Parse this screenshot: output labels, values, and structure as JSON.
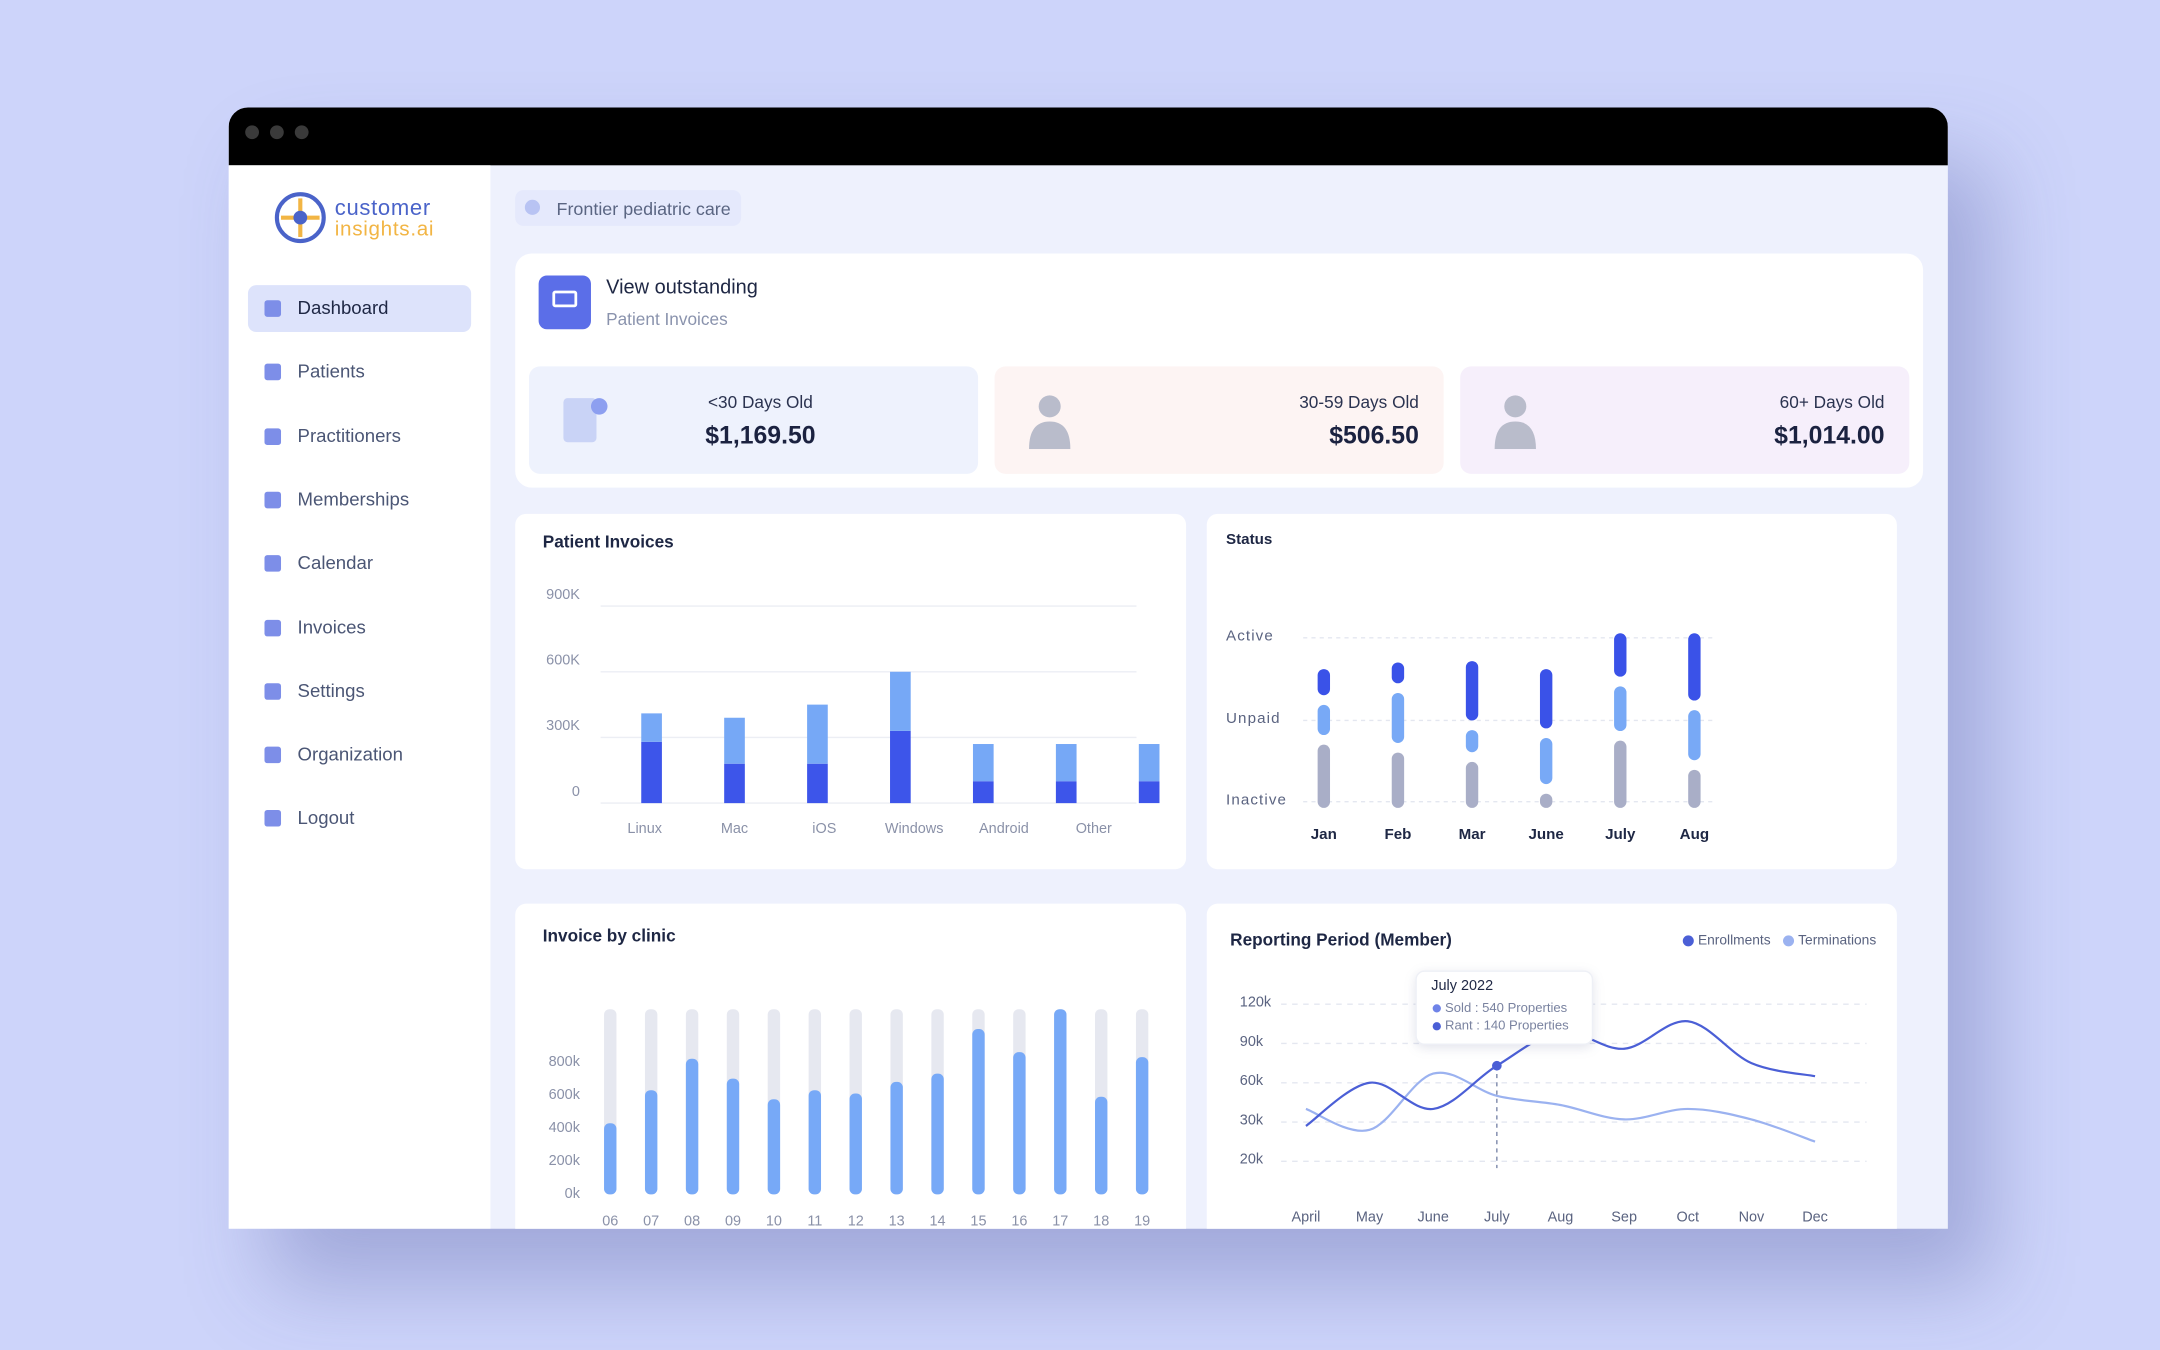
{
  "sidebar": {
    "logo": [
      "customer",
      "insights.ai"
    ],
    "nav": [
      "Dashboard",
      "Patients",
      "Practitioners",
      "Memberships",
      "Calendar",
      "Invoices",
      "Settings",
      "Organization",
      "Logout"
    ],
    "active": "Dashboard"
  },
  "location": "Frontier pediatric care",
  "outstanding": {
    "title": "View outstanding",
    "subtitle": "Patient Invoices",
    "cards": [
      {
        "label": "<30 Days Old",
        "value": "$1,169.50",
        "color": "#eef2fd"
      },
      {
        "label": "30-59 Days Old",
        "value": "$506.50",
        "color": "#fdf4f3"
      },
      {
        "label": "60+ Days Old",
        "value": "$1,014.00",
        "color": "#f6effb"
      }
    ]
  },
  "chart_data": [
    {
      "type": "bar",
      "stacked": true,
      "title": "Patient Invoices",
      "categories": [
        "Linux",
        "Mac",
        "iOS",
        "Windows",
        "Android",
        "Other",
        null
      ],
      "series": [
        {
          "color": "#3d55ea",
          "values": [
            280000,
            180000,
            180000,
            330000,
            100000,
            100000,
            100000
          ]
        },
        {
          "color": "#76a8f6",
          "values": [
            130000,
            210000,
            270000,
            270000,
            170000,
            170000,
            170000
          ]
        }
      ],
      "ylim": [
        0,
        900000
      ],
      "yticks": [
        0,
        {
          "value": 300000,
          "label": "300K"
        },
        {
          "value": 600000,
          "label": "600K"
        },
        {
          "value": 900000,
          "label": "900K"
        }
      ],
      "grid": true
    },
    {
      "type": "bar",
      "stacked": true,
      "title": "Status",
      "categories": [
        "Jan",
        "Feb",
        "Mar",
        "June",
        "July",
        "Aug"
      ],
      "y_categories": [
        "Active",
        "Unpaid",
        "Inactive"
      ],
      "series": [
        {
          "color": "#a9aec7",
          "values": [
            55,
            49,
            42,
            18,
            58,
            36
          ]
        },
        {
          "color": "#78a9f6",
          "values": [
            30,
            45,
            24,
            42,
            41,
            45
          ]
        },
        {
          "color": "#3a52e8",
          "values": [
            27,
            23,
            52,
            52,
            40,
            58
          ]
        }
      ],
      "ylim": [
        0,
        160
      ],
      "grid": true
    },
    {
      "type": "bar",
      "title": "Invoice by clinic",
      "categories": [
        "06",
        "07",
        "08",
        "09",
        "10",
        "11",
        "12",
        "13",
        "14",
        "15",
        "16",
        "17",
        "18",
        "19"
      ],
      "values": [
        430000,
        630000,
        820000,
        700000,
        575000,
        630000,
        610000,
        680000,
        730000,
        1000000,
        860000,
        1120000,
        590000,
        830000
      ],
      "color": "#77a9f7",
      "track_color": "#e6e8f0",
      "ylim": [
        0,
        1120000
      ],
      "yticks": [
        {
          "value": 0,
          "label": "0k"
        },
        {
          "value": 200000,
          "label": "200k"
        },
        {
          "value": 400000,
          "label": "400k"
        },
        {
          "value": 600000,
          "label": "600k"
        },
        {
          "value": 800000,
          "label": "800k"
        }
      ]
    },
    {
      "type": "line",
      "title": "Reporting Period (Member)",
      "categories": [
        "April",
        "May",
        "June",
        "July",
        "Aug",
        "Sep",
        "Oct",
        "Nov",
        "Dec"
      ],
      "series": [
        {
          "name": "Enrollments",
          "color": "#4b5fd6",
          "values": [
            29000,
            60000,
            40000,
            73000,
            99000,
            86000,
            107000,
            75000,
            65000
          ]
        },
        {
          "name": "Terminations",
          "color": "#9bb2f0",
          "values": [
            40000,
            28000,
            67000,
            50000,
            43000,
            32000,
            40000,
            32000,
            25000
          ]
        }
      ],
      "yticks": [
        {
          "value": 120000,
          "label": "120k"
        },
        {
          "value": 90000,
          "label": "90k"
        },
        {
          "value": 60000,
          "label": "60k"
        },
        {
          "value": 30000,
          "label": "30k"
        },
        {
          "value": 20000,
          "label": "20k"
        }
      ],
      "grid": true,
      "legend": "top-right",
      "highlight": "July",
      "tooltip": {
        "title": "July 2022",
        "items": [
          "Sold : 540 Properties",
          "Rant : 140 Properties"
        ]
      }
    }
  ]
}
